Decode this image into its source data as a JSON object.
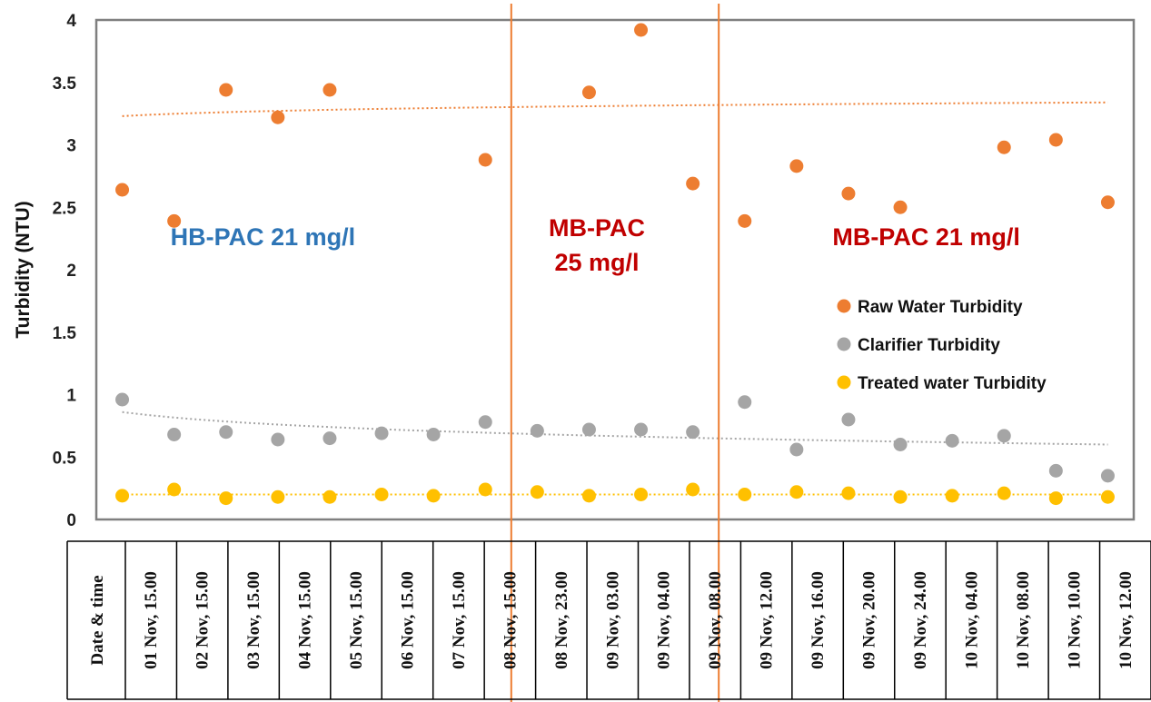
{
  "chart_data": {
    "type": "scatter",
    "ylabel": "Turbidity (NTU)",
    "ylim": [
      0,
      4
    ],
    "yticks": [
      "0",
      "0.5",
      "1",
      "1.5",
      "2",
      "2.5",
      "3",
      "3.5",
      "4"
    ],
    "xlabel": "Date & time",
    "categories": [
      "01 Nov, 15.00",
      "02 Nov, 15.00",
      "03 Nov, 15.00",
      "04 Nov, 15.00",
      "05 Nov, 15.00",
      "06 Nov, 15.00",
      "07 Nov, 15.00",
      "08 Nov, 15.00",
      "08 Nov, 23.00",
      "09 Nov, 03.00",
      "09 Nov, 04.00",
      "09 Nov, 08.00",
      "09 Nov, 12.00",
      "09 Nov, 16.00",
      "09 Nov, 20.00",
      "09 Nov, 24.00",
      "10 Nov, 04.00",
      "10 Nov, 08.00",
      "10 Nov, 10.00",
      "10 Nov, 12.00"
    ],
    "series": [
      {
        "name": "Raw Water Turbidity",
        "color": "#ed7d31",
        "values": [
          2.64,
          2.39,
          3.44,
          3.22,
          3.44,
          null,
          null,
          2.88,
          null,
          3.42,
          3.92,
          2.69,
          2.39,
          2.83,
          2.61,
          2.5,
          null,
          2.98,
          3.04,
          2.54
        ],
        "trend": [
          3.23,
          3.34
        ]
      },
      {
        "name": "Clarifier Turbidity",
        "color": "#a5a5a5",
        "values": [
          0.96,
          0.68,
          0.7,
          0.64,
          0.65,
          0.69,
          0.68,
          0.78,
          0.71,
          0.72,
          0.72,
          0.7,
          0.94,
          0.56,
          0.8,
          0.6,
          0.63,
          0.67,
          0.39,
          0.35
        ],
        "trend": [
          0.86,
          0.6
        ]
      },
      {
        "name": "Treated water Turbidity",
        "color": "#ffc000",
        "values": [
          0.19,
          0.24,
          0.17,
          0.18,
          0.18,
          0.2,
          0.19,
          0.24,
          0.22,
          0.19,
          0.2,
          0.24,
          0.2,
          0.22,
          0.21,
          0.18,
          0.19,
          0.21,
          0.17,
          0.18
        ],
        "trend": [
          0.2,
          0.2
        ]
      }
    ],
    "separators_after": [
      "08 Nov, 15.00",
      "09 Nov, 08.00"
    ],
    "regions": [
      {
        "label": "HB-PAC 21 mg/l",
        "color": "#2e75b6"
      },
      {
        "label": "MB-PAC\n25 mg/l",
        "color": "#c00000"
      },
      {
        "label": "MB-PAC 21 mg/l",
        "color": "#c00000"
      }
    ],
    "legend_position": "right",
    "grid": false
  }
}
